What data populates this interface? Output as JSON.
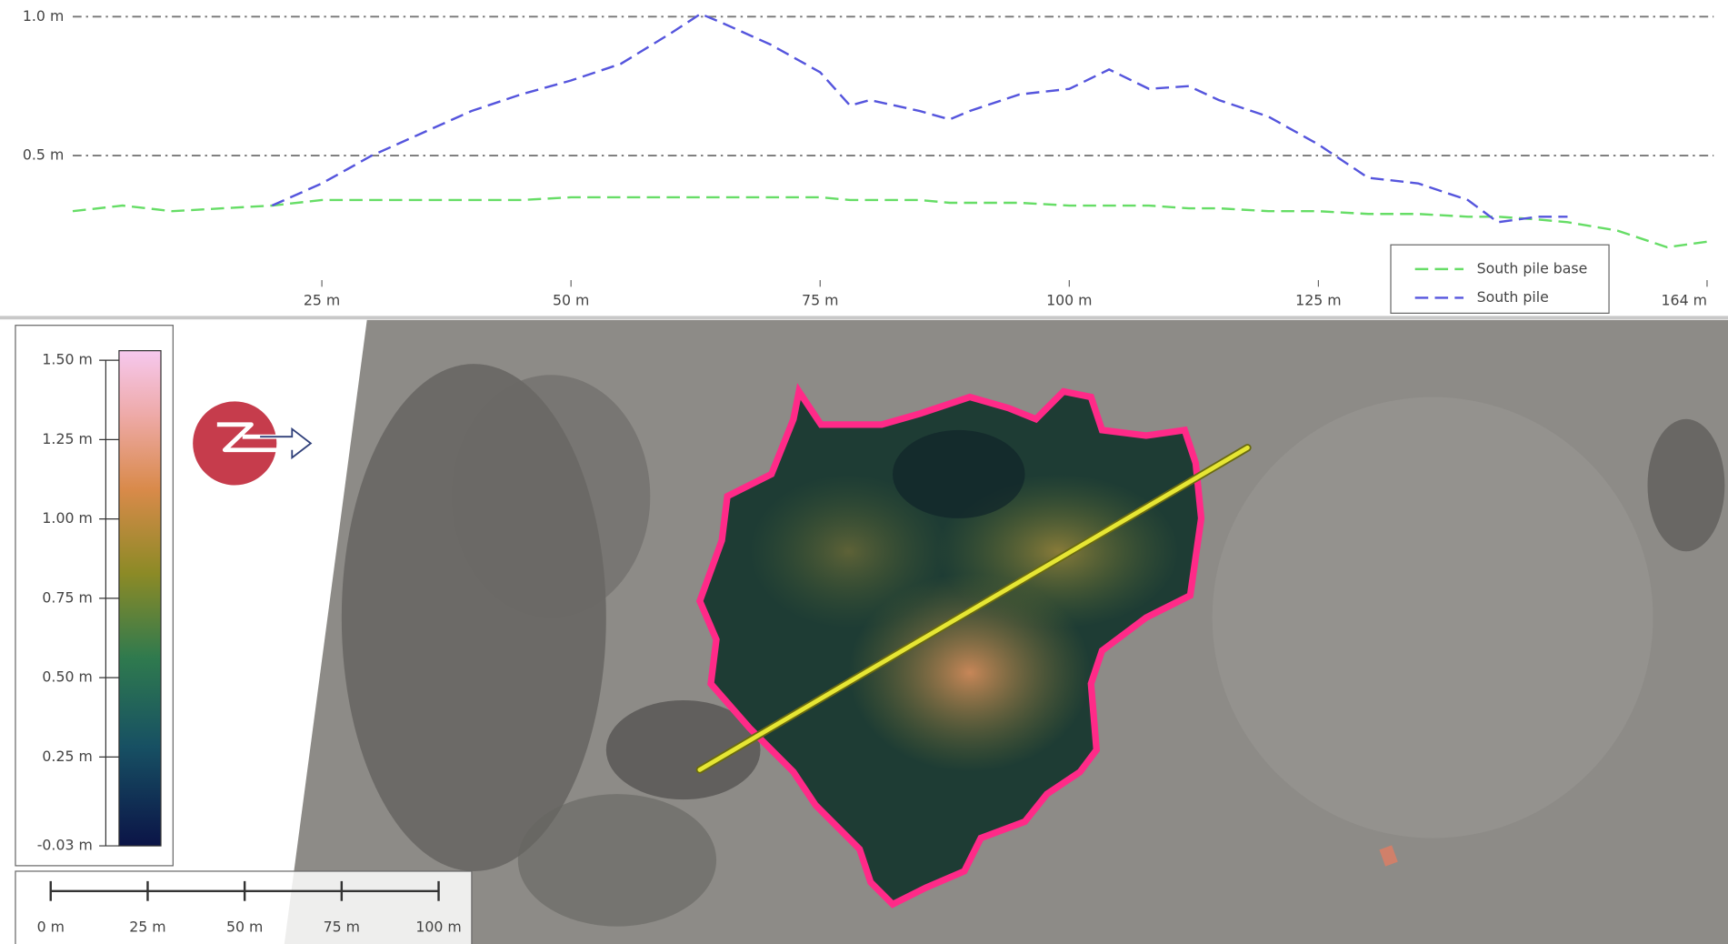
{
  "chart_data": {
    "type": "line",
    "x": [
      0,
      5,
      10,
      15,
      20,
      25,
      30,
      35,
      40,
      45,
      50,
      55,
      60,
      63,
      65,
      70,
      75,
      78,
      80,
      85,
      88,
      90,
      95,
      100,
      104,
      108,
      112,
      115,
      120,
      125,
      130,
      135,
      140,
      143,
      147,
      150,
      155,
      160,
      164
    ],
    "series": [
      {
        "name": "South pile base",
        "color": "#66dd66",
        "values": [
          0.3,
          0.32,
          0.3,
          0.31,
          0.32,
          0.34,
          0.34,
          0.34,
          0.34,
          0.34,
          0.35,
          0.35,
          0.35,
          0.35,
          0.35,
          0.35,
          0.35,
          0.34,
          0.34,
          0.34,
          0.33,
          0.33,
          0.33,
          0.32,
          0.32,
          0.32,
          0.31,
          0.31,
          0.3,
          0.3,
          0.29,
          0.29,
          0.28,
          0.28,
          0.27,
          0.26,
          0.23,
          0.17,
          0.19
        ]
      },
      {
        "name": "South pile",
        "color": "#5555dd",
        "values": [
          null,
          null,
          null,
          null,
          0.32,
          0.4,
          0.5,
          0.58,
          0.66,
          0.72,
          0.77,
          0.83,
          0.94,
          1.01,
          0.98,
          0.9,
          0.8,
          0.68,
          0.7,
          0.66,
          0.63,
          0.66,
          0.72,
          0.74,
          0.81,
          0.74,
          0.75,
          0.7,
          0.64,
          0.54,
          0.42,
          0.4,
          0.34,
          0.26,
          0.28,
          0.28,
          null,
          null,
          null
        ]
      }
    ],
    "xlim": [
      0,
      164
    ],
    "xticks": [
      {
        "value": 25,
        "label": "25 m"
      },
      {
        "value": 50,
        "label": "50 m"
      },
      {
        "value": 75,
        "label": "75 m"
      },
      {
        "value": 100,
        "label": "100 m"
      },
      {
        "value": 125,
        "label": "125 m"
      },
      {
        "value": 164,
        "label": "164 m"
      }
    ],
    "ylim": [
      0.02,
      1.04
    ],
    "yticks": [
      {
        "value": 0.5,
        "label": "0.5 m"
      },
      {
        "value": 1.0,
        "label": "1.0 m"
      }
    ],
    "grid": true,
    "legend": "bottom-right"
  },
  "map": {
    "colorbar": {
      "range": [
        -0.03,
        1.53
      ],
      "ticks": [
        {
          "value": 1.5,
          "label": "1.50 m"
        },
        {
          "value": 1.25,
          "label": "1.25 m"
        },
        {
          "value": 1.0,
          "label": "1.00 m"
        },
        {
          "value": 0.75,
          "label": "0.75 m"
        },
        {
          "value": 0.5,
          "label": "0.50 m"
        },
        {
          "value": 0.25,
          "label": "0.25 m"
        },
        {
          "value": -0.03,
          "label": "-0.03 m"
        }
      ]
    },
    "scale_bar": {
      "ticks": [
        {
          "value": 0,
          "label": "0 m"
        },
        {
          "value": 25,
          "label": "25 m"
        },
        {
          "value": 50,
          "label": "50 m"
        },
        {
          "value": 75,
          "label": "75 m"
        },
        {
          "value": 100,
          "label": "100 m"
        }
      ]
    }
  }
}
